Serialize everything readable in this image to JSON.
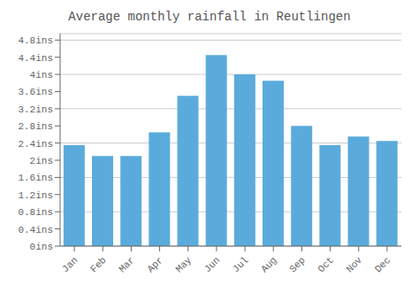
{
  "chart_data": {
    "type": "bar",
    "title": "Average monthly rainfall in Reutlingen",
    "categories": [
      "Jan",
      "Feb",
      "Mar",
      "Apr",
      "May",
      "Jun",
      "Jul",
      "Aug",
      "Sep",
      "Oct",
      "Nov",
      "Dec"
    ],
    "values": [
      2.35,
      2.1,
      2.1,
      2.65,
      3.5,
      4.45,
      4.0,
      3.85,
      2.8,
      2.35,
      2.55,
      2.45
    ],
    "color": "#5aabdc",
    "ylim": [
      0,
      4.95
    ],
    "yticks": [
      {
        "value": 0,
        "label": "0ins"
      },
      {
        "value": 0.4,
        "label": "0.4ins"
      },
      {
        "value": 0.8,
        "label": "0.8ins"
      },
      {
        "value": 1.2,
        "label": "1.2ins"
      },
      {
        "value": 1.6,
        "label": "1.6ins"
      },
      {
        "value": 2,
        "label": "2ins"
      },
      {
        "value": 2.4,
        "label": "2.4ins"
      },
      {
        "value": 2.8,
        "label": "2.8ins"
      },
      {
        "value": 3.2,
        "label": "3.2ins"
      },
      {
        "value": 3.6,
        "label": "3.6ins"
      },
      {
        "value": 4,
        "label": "4ins"
      },
      {
        "value": 4.4,
        "label": "4.4ins"
      },
      {
        "value": 4.8,
        "label": "4.8ins"
      }
    ],
    "grid": true
  }
}
